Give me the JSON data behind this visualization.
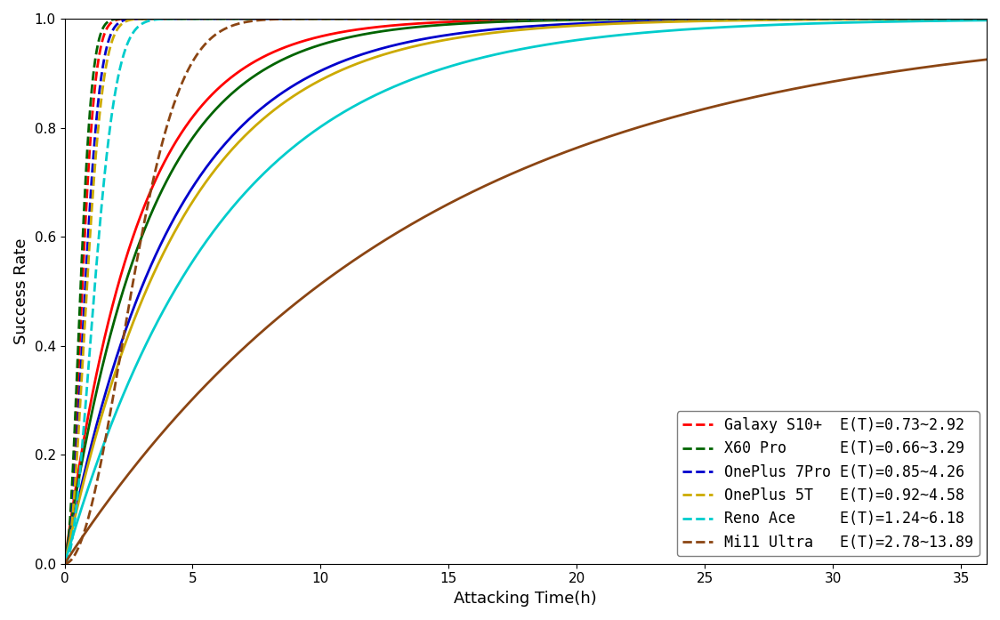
{
  "devices": [
    {
      "name": "Galaxy S10+",
      "color": "#ff0000",
      "et_min": 0.73,
      "et_max": 2.92,
      "legend_name": "Galaxy S10+",
      "legend_et": "0.73~2.92"
    },
    {
      "name": "X60 Pro",
      "color": "#006400",
      "et_min": 0.66,
      "et_max": 3.29,
      "legend_name": "X60 Pro",
      "legend_et": "0.66~3.29"
    },
    {
      "name": "OnePlus 7Pro",
      "color": "#0000cc",
      "et_min": 0.85,
      "et_max": 4.26,
      "legend_name": "OnePlus 7Pro",
      "legend_et": "0.85~4.26"
    },
    {
      "name": "OnePlus 5T",
      "color": "#ccaa00",
      "et_min": 0.92,
      "et_max": 4.58,
      "legend_name": "OnePlus 5T",
      "legend_et": "0.92~4.58"
    },
    {
      "name": "Reno Ace",
      "color": "#00cccc",
      "et_min": 1.24,
      "et_max": 6.18,
      "legend_name": "Reno Ace",
      "legend_et": "1.24~6.18"
    },
    {
      "name": "Mi11 Ultra",
      "color": "#8B4513",
      "et_min": 2.78,
      "et_max": 13.89,
      "legend_name": "Mi11 Ultra",
      "legend_et": "2.78~13.89"
    }
  ],
  "xlabel": "Attacking Time(h)",
  "ylabel": "Success Rate",
  "xlim": [
    0,
    36
  ],
  "ylim": [
    0.0,
    1.0
  ],
  "xticks": [
    0,
    5,
    10,
    15,
    20,
    25,
    30,
    35
  ],
  "yticks": [
    0.0,
    0.2,
    0.4,
    0.6,
    0.8,
    1.0
  ],
  "figsize": [
    11.24,
    6.97
  ],
  "dpi": 100,
  "weibull_shape_dashed": 2.0,
  "weibull_shape_solid": 1.0
}
